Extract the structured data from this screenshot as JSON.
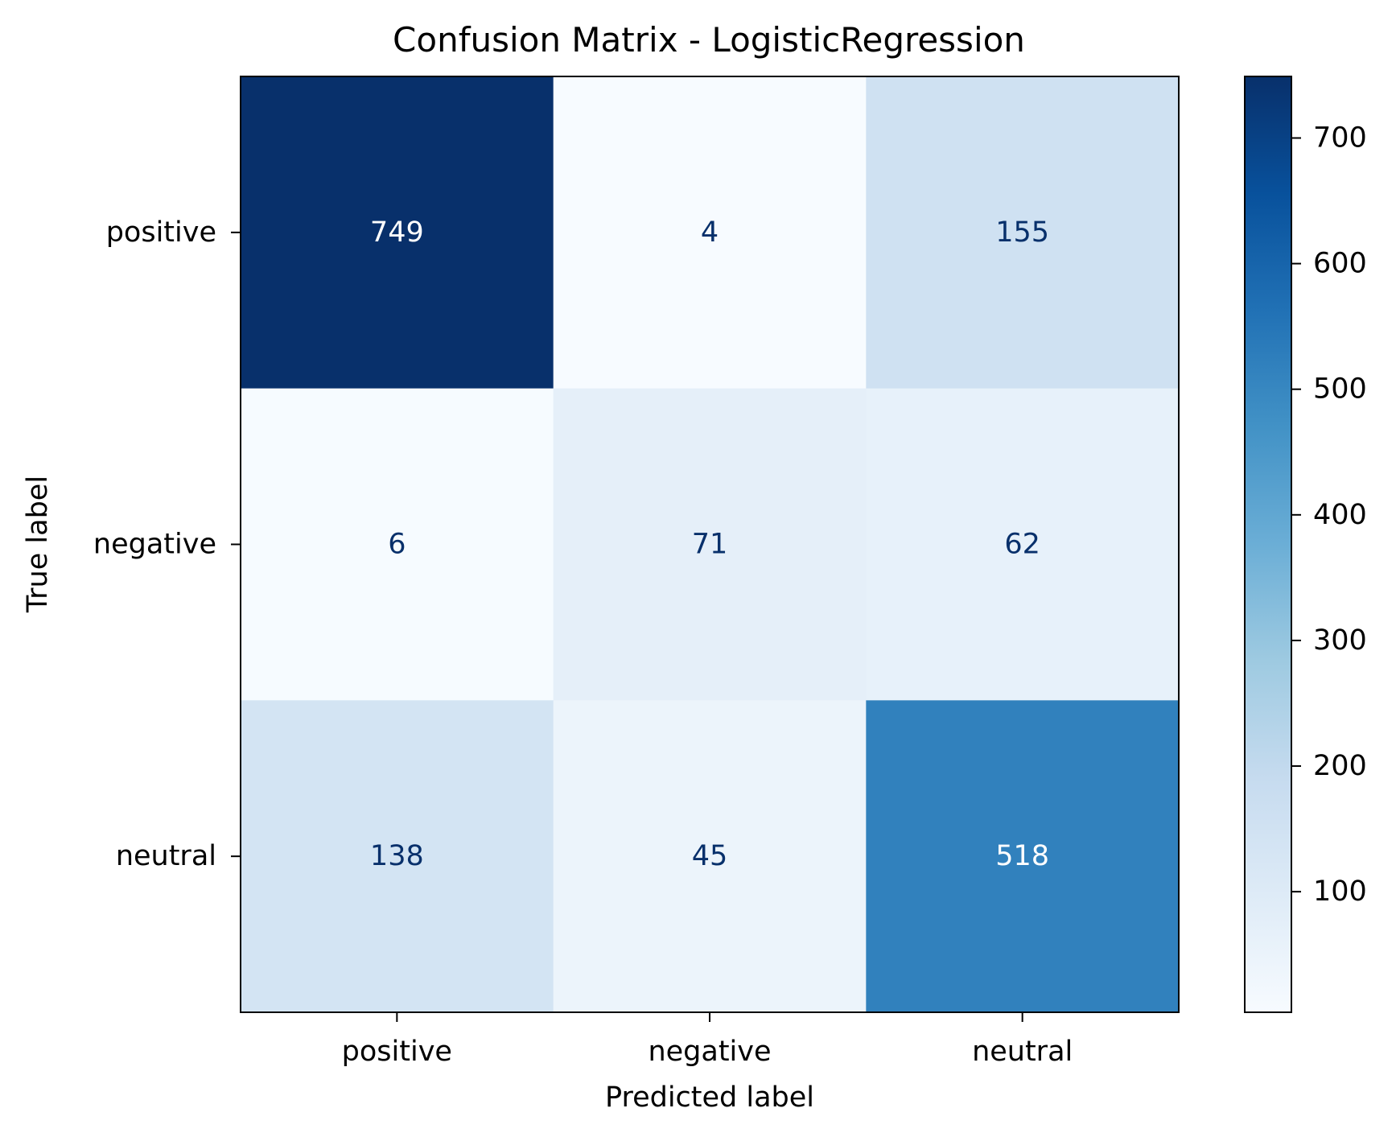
{
  "chart_data": {
    "type": "heatmap",
    "title": "Confusion Matrix - LogisticRegression",
    "xlabel": "Predicted label",
    "ylabel": "True label",
    "x_categories": [
      "positive",
      "negative",
      "neutral"
    ],
    "y_categories": [
      "positive",
      "negative",
      "neutral"
    ],
    "values": [
      [
        749,
        4,
        155
      ],
      [
        6,
        71,
        62
      ],
      [
        138,
        45,
        518
      ]
    ],
    "colormap": "Blues",
    "value_range": [
      4,
      749
    ],
    "colorbar": {
      "ticks": [
        100,
        200,
        300,
        400,
        500,
        600,
        700
      ],
      "tick_labels": [
        "100",
        "200",
        "300",
        "400",
        "500",
        "600",
        "700"
      ]
    },
    "annotation_colors": {
      "light": "#ffffff",
      "dark": "#08306b"
    },
    "grid": false
  }
}
